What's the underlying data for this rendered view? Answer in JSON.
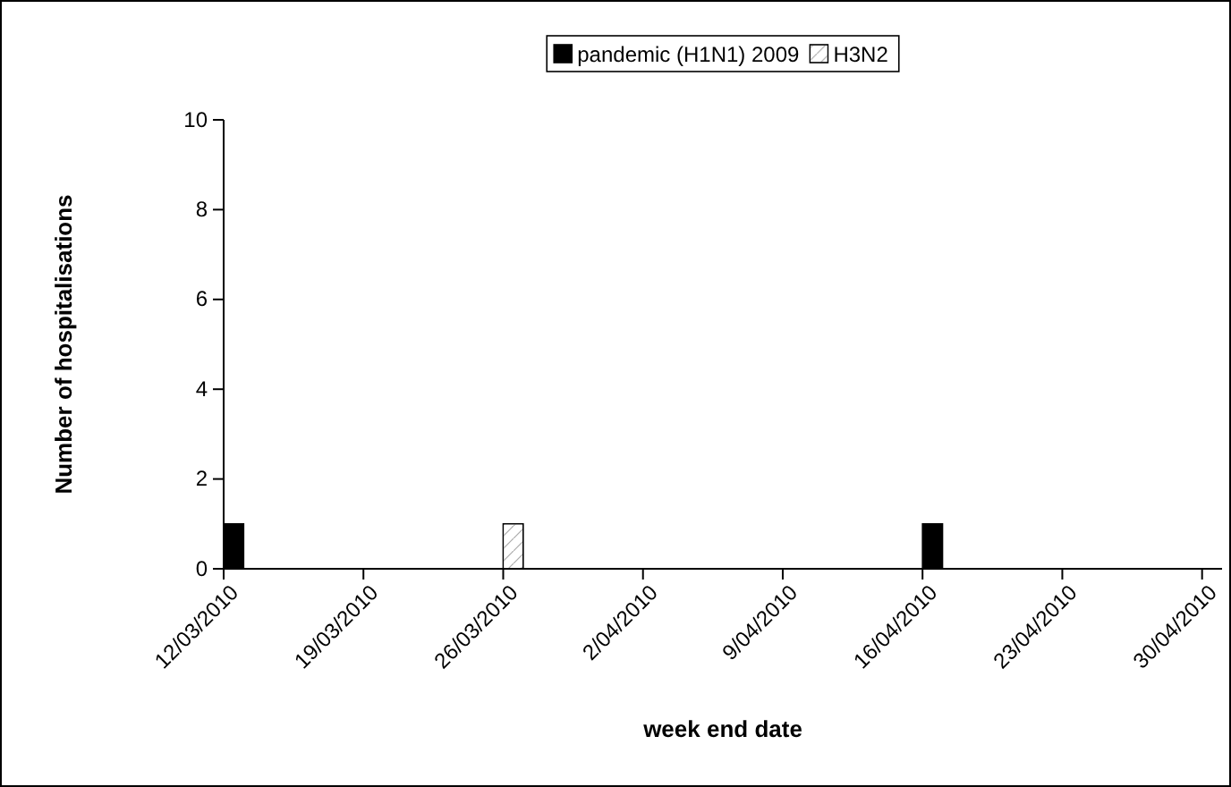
{
  "chart_data": {
    "type": "bar",
    "xlabel": "week end date",
    "ylabel": "Number of hospitalisations",
    "xlim": [
      "2010-03-12",
      "2010-05-01"
    ],
    "xticks": [
      {
        "value": "2010-03-12",
        "label": "12/03/2010"
      },
      {
        "value": "2010-03-19",
        "label": "19/03/2010"
      },
      {
        "value": "2010-03-26",
        "label": "26/03/2010"
      },
      {
        "value": "2010-04-02",
        "label": "2/04/2010"
      },
      {
        "value": "2010-04-09",
        "label": "9/04/2010"
      },
      {
        "value": "2010-04-16",
        "label": "16/04/2010"
      },
      {
        "value": "2010-04-23",
        "label": "23/04/2010"
      },
      {
        "value": "2010-04-30",
        "label": "30/04/2010"
      }
    ],
    "ylim": [
      0,
      10
    ],
    "yticks": [
      0,
      2,
      4,
      6,
      8,
      10
    ],
    "grid": false,
    "legend": "top",
    "series": [
      {
        "name": "pandemic (H1N1) 2009",
        "color": "#000000",
        "x": [
          "2010-03-12",
          "2010-04-16"
        ],
        "values": [
          1,
          1
        ]
      },
      {
        "name": "H3N2",
        "color": "#ffffff",
        "x": [
          "2010-03-26"
        ],
        "values": [
          1
        ]
      }
    ]
  }
}
